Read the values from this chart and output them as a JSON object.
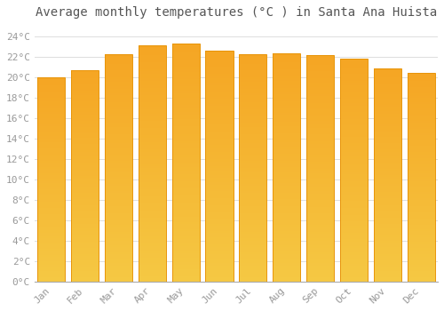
{
  "title": "Average monthly temperatures (°C ) in Santa Ana Huista",
  "months": [
    "Jan",
    "Feb",
    "Mar",
    "Apr",
    "May",
    "Jun",
    "Jul",
    "Aug",
    "Sep",
    "Oct",
    "Nov",
    "Dec"
  ],
  "values": [
    20.0,
    20.7,
    22.2,
    23.1,
    23.3,
    22.6,
    22.2,
    22.3,
    22.1,
    21.8,
    20.8,
    20.4
  ],
  "bar_color_top": "#F5A623",
  "bar_color_bottom": "#F5C842",
  "bar_edge_color": "#E8950A",
  "background_color": "#FFFFFF",
  "outer_background": "#FFFFFF",
  "grid_color": "#DDDDDD",
  "ylim": [
    0,
    25
  ],
  "ytick_step": 2,
  "title_fontsize": 10,
  "tick_fontsize": 8,
  "font_color": "#999999",
  "title_color": "#555555"
}
